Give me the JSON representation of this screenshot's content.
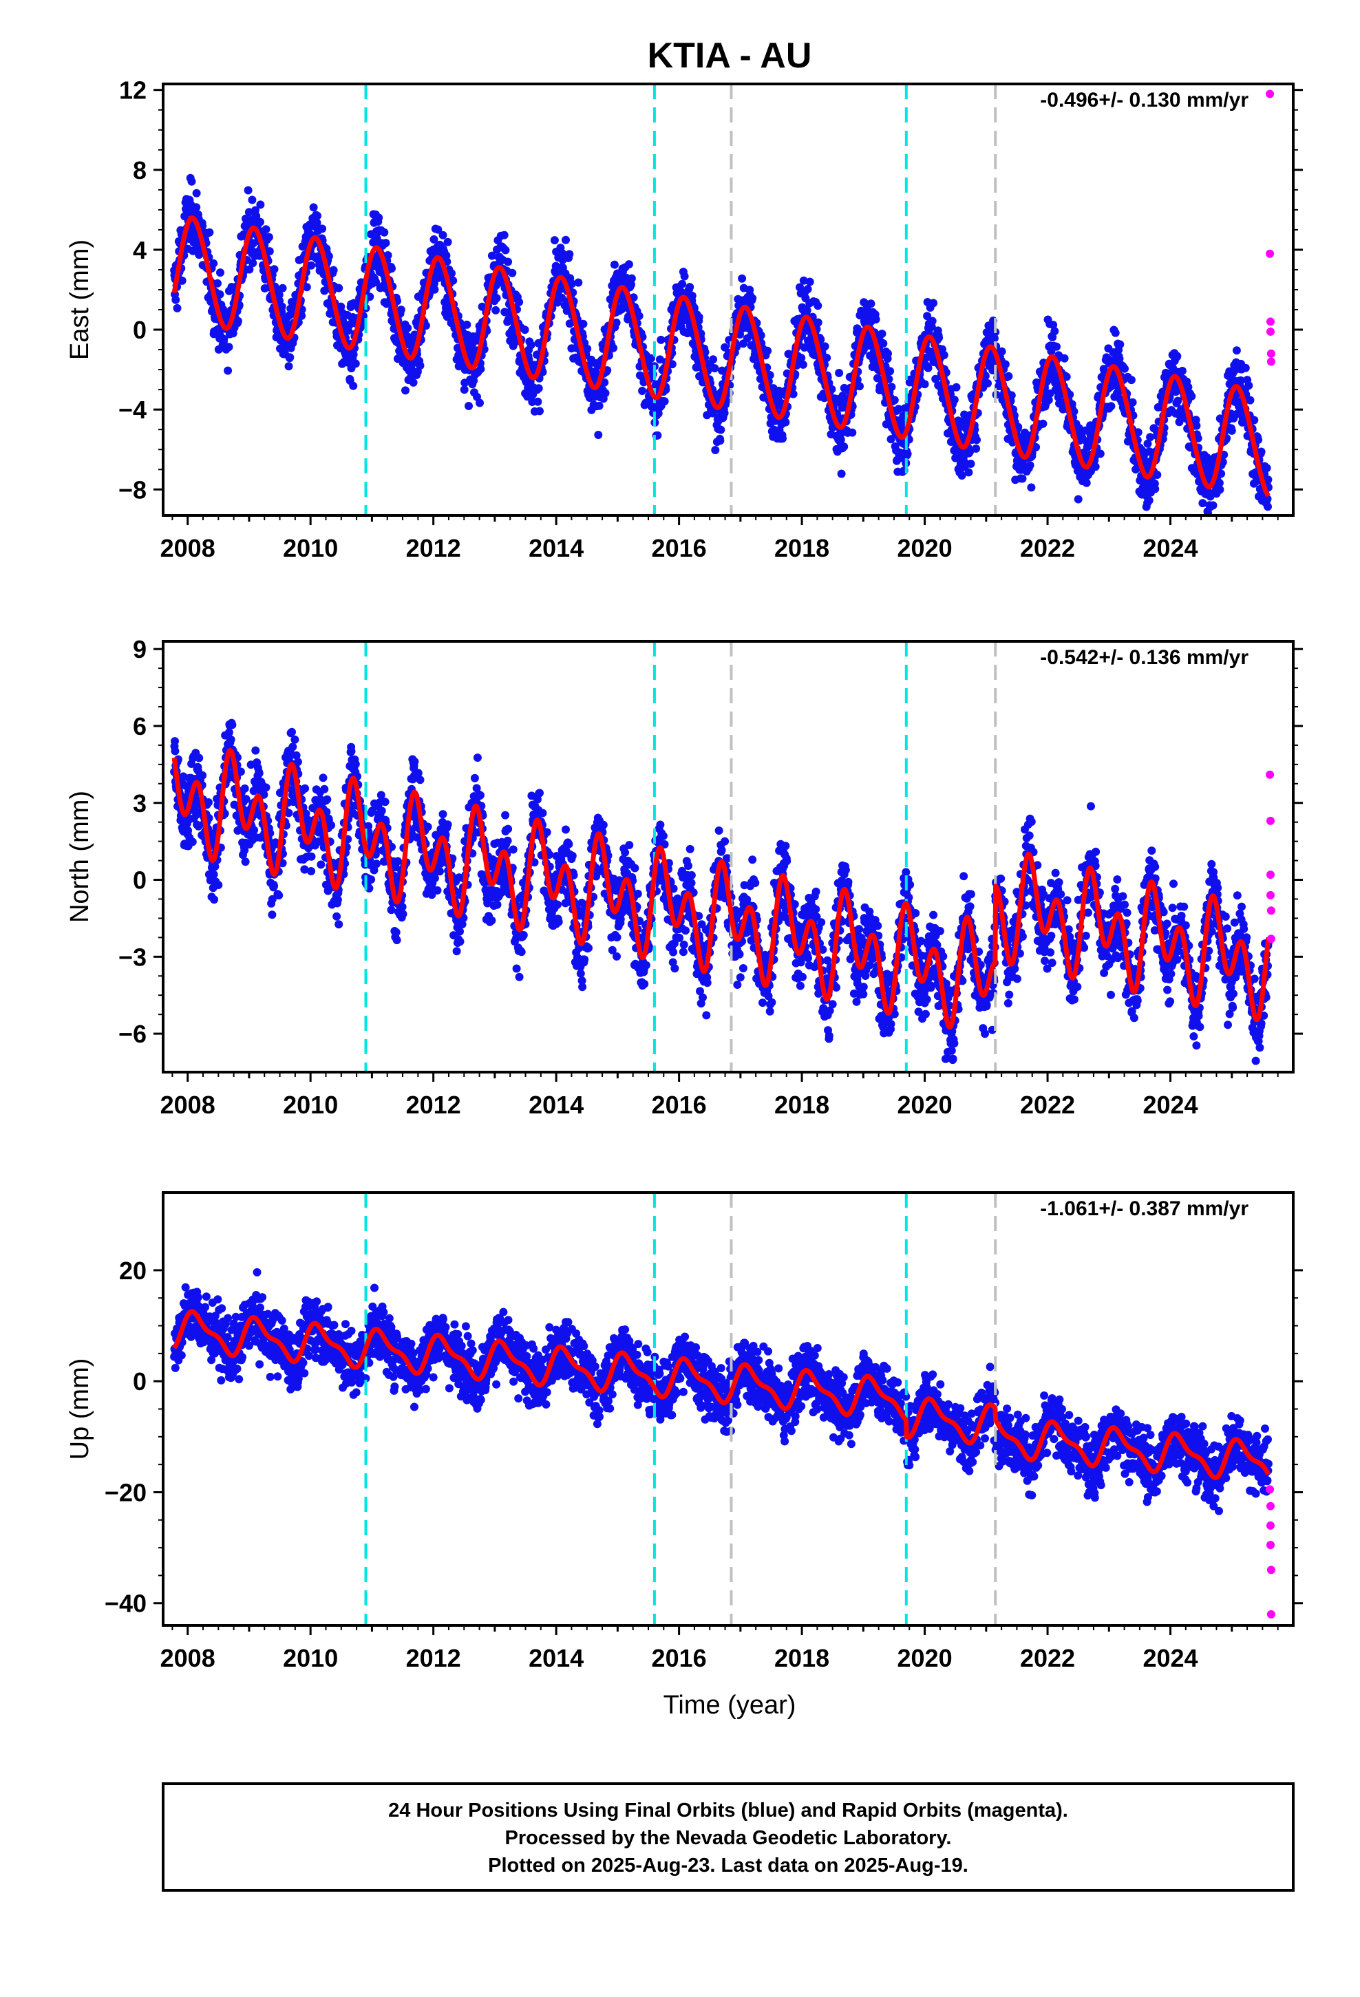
{
  "chart_data": {
    "type": "scatter",
    "title": "KTIA - AU",
    "xlabel": "Time (year)",
    "xlim": [
      2007.6,
      2026.0
    ],
    "xticks": [
      2008,
      2010,
      2012,
      2014,
      2016,
      2018,
      2020,
      2022,
      2024
    ],
    "xtick_labels": [
      "2008",
      "2010",
      "2012",
      "2014",
      "2016",
      "2018",
      "2020",
      "2022",
      "2024"
    ],
    "vlines": {
      "cyan": [
        2010.9,
        2015.6,
        2019.7
      ],
      "gray": [
        2016.85,
        2021.15
      ]
    },
    "colors": {
      "final_orbits": "#1010ee",
      "rapid_orbits": "#ff00ff",
      "model": "#ff0000",
      "cyan_line": "#00e5e5",
      "gray_line": "#c0c0c0"
    },
    "panels": [
      {
        "name": "East",
        "ylabel": "East (mm)",
        "ylim": [
          -9.3,
          12.3
        ],
        "yticks": [
          -8,
          -4,
          0,
          4,
          8,
          12
        ],
        "ytick_labels": [
          "−8",
          "−4",
          "0",
          "4",
          "8",
          "12"
        ],
        "rate_label": "-0.496+/- 0.130 mm/yr",
        "model": {
          "offset": 3.0,
          "trend": -0.496,
          "amp1": 2.6,
          "amp2": 0.2,
          "phase": 0.15,
          "noise": 1.2,
          "steps": []
        },
        "rapid_points": [
          {
            "x": 2025.62,
            "y": 11.8
          },
          {
            "x": 2025.62,
            "y": 3.8
          },
          {
            "x": 2025.63,
            "y": 0.4
          },
          {
            "x": 2025.63,
            "y": -0.1
          },
          {
            "x": 2025.64,
            "y": -1.2
          },
          {
            "x": 2025.64,
            "y": -1.6
          }
        ]
      },
      {
        "name": "North",
        "ylabel": "North (mm)",
        "ylim": [
          -7.5,
          9.3
        ],
        "yticks": [
          -6,
          -3,
          0,
          3,
          6,
          9
        ],
        "ytick_labels": [
          "−6",
          "−3",
          "0",
          "3",
          "6",
          "9"
        ],
        "rate_label": "-0.542+/- 0.136 mm/yr",
        "model": {
          "offset": 3.2,
          "trend": -0.542,
          "amp1": 1.1,
          "amp2": 1.4,
          "phase": 0.45,
          "noise": 1.1,
          "steps": [
            {
              "t": 2021.15,
              "dy": 3.0
            }
          ]
        },
        "rapid_points": [
          {
            "x": 2025.62,
            "y": 4.1
          },
          {
            "x": 2025.63,
            "y": 2.3
          },
          {
            "x": 2025.63,
            "y": 0.2
          },
          {
            "x": 2025.63,
            "y": -0.6
          },
          {
            "x": 2025.64,
            "y": -1.2
          },
          {
            "x": 2025.64,
            "y": -2.3
          }
        ]
      },
      {
        "name": "Up",
        "ylabel": "Up (mm)",
        "ylim": [
          -44.0,
          34.0
        ],
        "yticks": [
          -40,
          -20,
          0,
          20
        ],
        "ytick_labels": [
          "−40",
          "−20",
          "0",
          "20"
        ],
        "rate_label": "-1.061+/- 0.387 mm/yr",
        "model": {
          "offset": 9.0,
          "trend": -1.061,
          "amp1": 3.0,
          "amp2": 1.2,
          "phase": 0.1,
          "noise": 3.8,
          "steps": [
            {
              "t": 2019.7,
              "dy": -3.0
            },
            {
              "t": 2021.15,
              "dy": -2.0
            }
          ]
        },
        "rapid_points": [
          {
            "x": 2025.62,
            "y": -19.5
          },
          {
            "x": 2025.63,
            "y": -22.5
          },
          {
            "x": 2025.63,
            "y": -26.0
          },
          {
            "x": 2025.63,
            "y": -29.5
          },
          {
            "x": 2025.64,
            "y": -34.0
          },
          {
            "x": 2025.64,
            "y": -42.0
          }
        ]
      }
    ]
  },
  "footer": {
    "line1": "24 Hour Positions Using Final Orbits (blue) and Rapid Orbits (magenta).",
    "line2": "Processed by the Nevada Geodetic Laboratory.",
    "line3": "Plotted on 2025-Aug-23. Last data on 2025-Aug-19."
  }
}
